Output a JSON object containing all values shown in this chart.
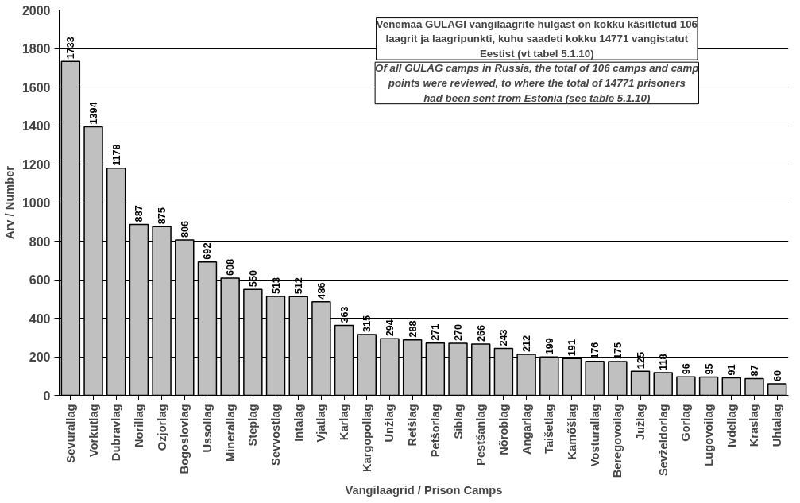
{
  "chart_data": {
    "type": "bar",
    "xlabel": "Vangilaagrid / Prison Camps",
    "ylabel": "Arv / Number",
    "categories": [
      "Sevurallag",
      "Vorkutlag",
      "Dubravlag",
      "Norillag",
      "Ozjorlag",
      "Bogoslovlag",
      "Ussollag",
      "Minerallag",
      "Steplag",
      "Sevvostlag",
      "Intalag",
      "Vjatlag",
      "Karlag",
      "Kargopollag",
      "Unžlag",
      "Retšlag",
      "Petšorlag",
      "Siblag",
      "Pestšanlag",
      "Nõroblag",
      "Angarlag",
      "Taišetlag",
      "Kamõšlag",
      "Vosturallag",
      "Beregovoilag",
      "Južlag",
      "Sevželdorlag",
      "Gorlag",
      "Lugovoilag",
      "Ivdellag",
      "Kraslag",
      "Uhtalag"
    ],
    "values": [
      1733,
      1394,
      1178,
      887,
      875,
      806,
      692,
      608,
      550,
      513,
      512,
      486,
      363,
      315,
      294,
      288,
      271,
      270,
      266,
      243,
      212,
      199,
      191,
      176,
      175,
      125,
      118,
      96,
      95,
      91,
      87,
      60
    ],
    "color": "#c0c0c0",
    "ylim": [
      0,
      2000
    ],
    "yticks": [
      0,
      200,
      400,
      600,
      800,
      1000,
      1200,
      1400,
      1600,
      1800,
      2000
    ],
    "grid": "y",
    "data_labels": true,
    "annotations": [
      "Venemaa GULAGI vangilaagrite hulgast on kokku käsitletud 106 laagrit ja laagripunkti, kuhu saadeti kokku 14771 vangistatut Eestist (vt tabel 5.1.10)",
      "Of all GULAG camps in Russia, the total of 106 camps and camp points were reviewed, to where the total of 14771 prisoners had been sent from Estonia (see table 5.1.10)"
    ]
  }
}
